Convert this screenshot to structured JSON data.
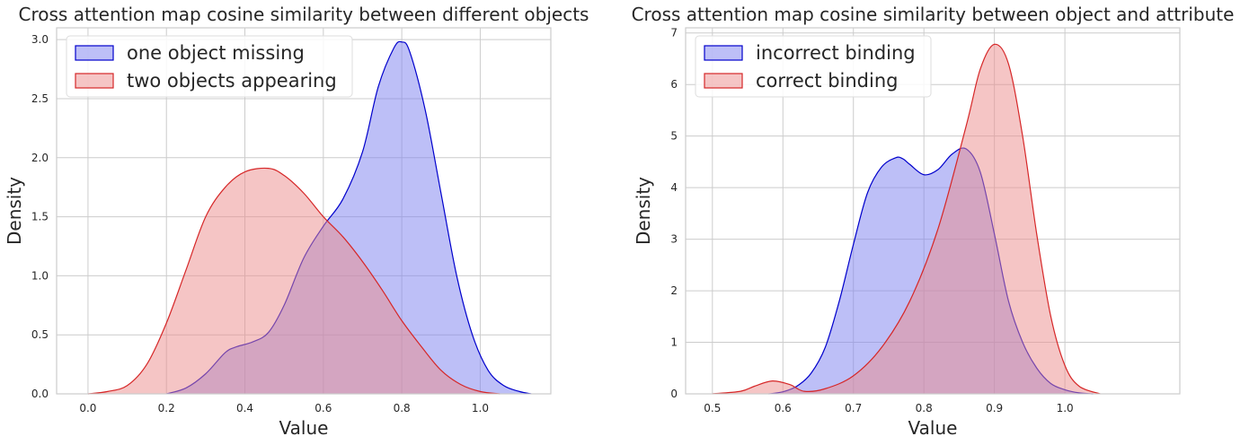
{
  "chart_data": [
    {
      "type": "area",
      "title": "Cross attention map cosine similarity between different objects",
      "xlabel": "Value",
      "ylabel": "Density",
      "xlim": [
        -0.08,
        1.18
      ],
      "ylim": [
        0,
        3.1
      ],
      "xticks": [
        0.0,
        0.2,
        0.4,
        0.6,
        0.8,
        1.0
      ],
      "xtick_labels": [
        "0.0",
        "0.2",
        "0.4",
        "0.6",
        "0.8",
        "1.0"
      ],
      "yticks": [
        0.0,
        0.5,
        1.0,
        1.5,
        2.0,
        2.5,
        3.0
      ],
      "ytick_labels": [
        "0.0",
        "0.5",
        "1.0",
        "1.5",
        "2.0",
        "2.5",
        "3.0"
      ],
      "grid": true,
      "legend_position": "top-left",
      "series": [
        {
          "name": "one object missing",
          "color": "#0000cc",
          "fill": "#7b7ff0",
          "x": [
            0.2,
            0.25,
            0.3,
            0.35,
            0.38,
            0.42,
            0.46,
            0.5,
            0.55,
            0.6,
            0.65,
            0.7,
            0.74,
            0.78,
            0.8,
            0.82,
            0.86,
            0.9,
            0.94,
            0.98,
            1.02,
            1.06,
            1.1,
            1.13
          ],
          "y": [
            0.0,
            0.05,
            0.17,
            0.35,
            0.4,
            0.44,
            0.52,
            0.75,
            1.15,
            1.42,
            1.65,
            2.05,
            2.6,
            2.93,
            2.98,
            2.9,
            2.4,
            1.7,
            1.0,
            0.5,
            0.2,
            0.07,
            0.02,
            0.0
          ]
        },
        {
          "name": "two objects appearing",
          "color": "#d62728",
          "fill": "#ec8c8c",
          "x": [
            0.0,
            0.05,
            0.1,
            0.15,
            0.2,
            0.25,
            0.3,
            0.35,
            0.4,
            0.46,
            0.5,
            0.55,
            0.6,
            0.65,
            0.7,
            0.75,
            0.8,
            0.85,
            0.9,
            0.95,
            1.0,
            1.05
          ],
          "y": [
            0.0,
            0.02,
            0.07,
            0.25,
            0.6,
            1.05,
            1.5,
            1.75,
            1.88,
            1.91,
            1.85,
            1.7,
            1.5,
            1.33,
            1.12,
            0.88,
            0.62,
            0.4,
            0.2,
            0.08,
            0.02,
            0.0
          ]
        }
      ]
    },
    {
      "type": "area",
      "title": "Cross attention map cosine similarity between object and attribute",
      "xlabel": "Value",
      "ylabel": "Density",
      "xlim": [
        0.462,
        1.163
      ],
      "ylim": [
        0,
        7.1
      ],
      "xticks": [
        0.5,
        0.6,
        0.7,
        0.8,
        0.9,
        1.0
      ],
      "xtick_labels": [
        "0.5",
        "0.6",
        "0.7",
        "0.8",
        "0.9",
        "1.0"
      ],
      "yticks": [
        0,
        1,
        2,
        3,
        4,
        5,
        6,
        7
      ],
      "ytick_labels": [
        "0",
        "1",
        "2",
        "3",
        "4",
        "5",
        "6",
        "7"
      ],
      "grid": true,
      "legend_position": "top-left",
      "series": [
        {
          "name": "incorrect binding",
          "color": "#0000cc",
          "fill": "#7b7ff0",
          "x": [
            0.58,
            0.6,
            0.62,
            0.64,
            0.66,
            0.68,
            0.7,
            0.72,
            0.74,
            0.76,
            0.77,
            0.78,
            0.8,
            0.82,
            0.84,
            0.86,
            0.88,
            0.9,
            0.92,
            0.94,
            0.96,
            0.98,
            1.0,
            1.02,
            1.04
          ],
          "y": [
            0.0,
            0.04,
            0.15,
            0.4,
            0.9,
            1.8,
            2.9,
            3.9,
            4.4,
            4.58,
            4.56,
            4.45,
            4.25,
            4.35,
            4.65,
            4.75,
            4.3,
            3.1,
            1.8,
            1.0,
            0.5,
            0.2,
            0.08,
            0.02,
            0.0
          ]
        },
        {
          "name": "correct binding",
          "color": "#d62728",
          "fill": "#ec8c8c",
          "x": [
            0.5,
            0.54,
            0.56,
            0.585,
            0.61,
            0.63,
            0.66,
            0.7,
            0.74,
            0.78,
            0.82,
            0.86,
            0.88,
            0.9,
            0.92,
            0.94,
            0.96,
            0.98,
            1.0,
            1.02,
            1.05
          ],
          "y": [
            0.0,
            0.05,
            0.15,
            0.25,
            0.18,
            0.05,
            0.1,
            0.35,
            0.9,
            1.8,
            3.2,
            5.2,
            6.3,
            6.78,
            6.4,
            5.0,
            3.1,
            1.5,
            0.55,
            0.15,
            0.0
          ]
        }
      ]
    }
  ]
}
